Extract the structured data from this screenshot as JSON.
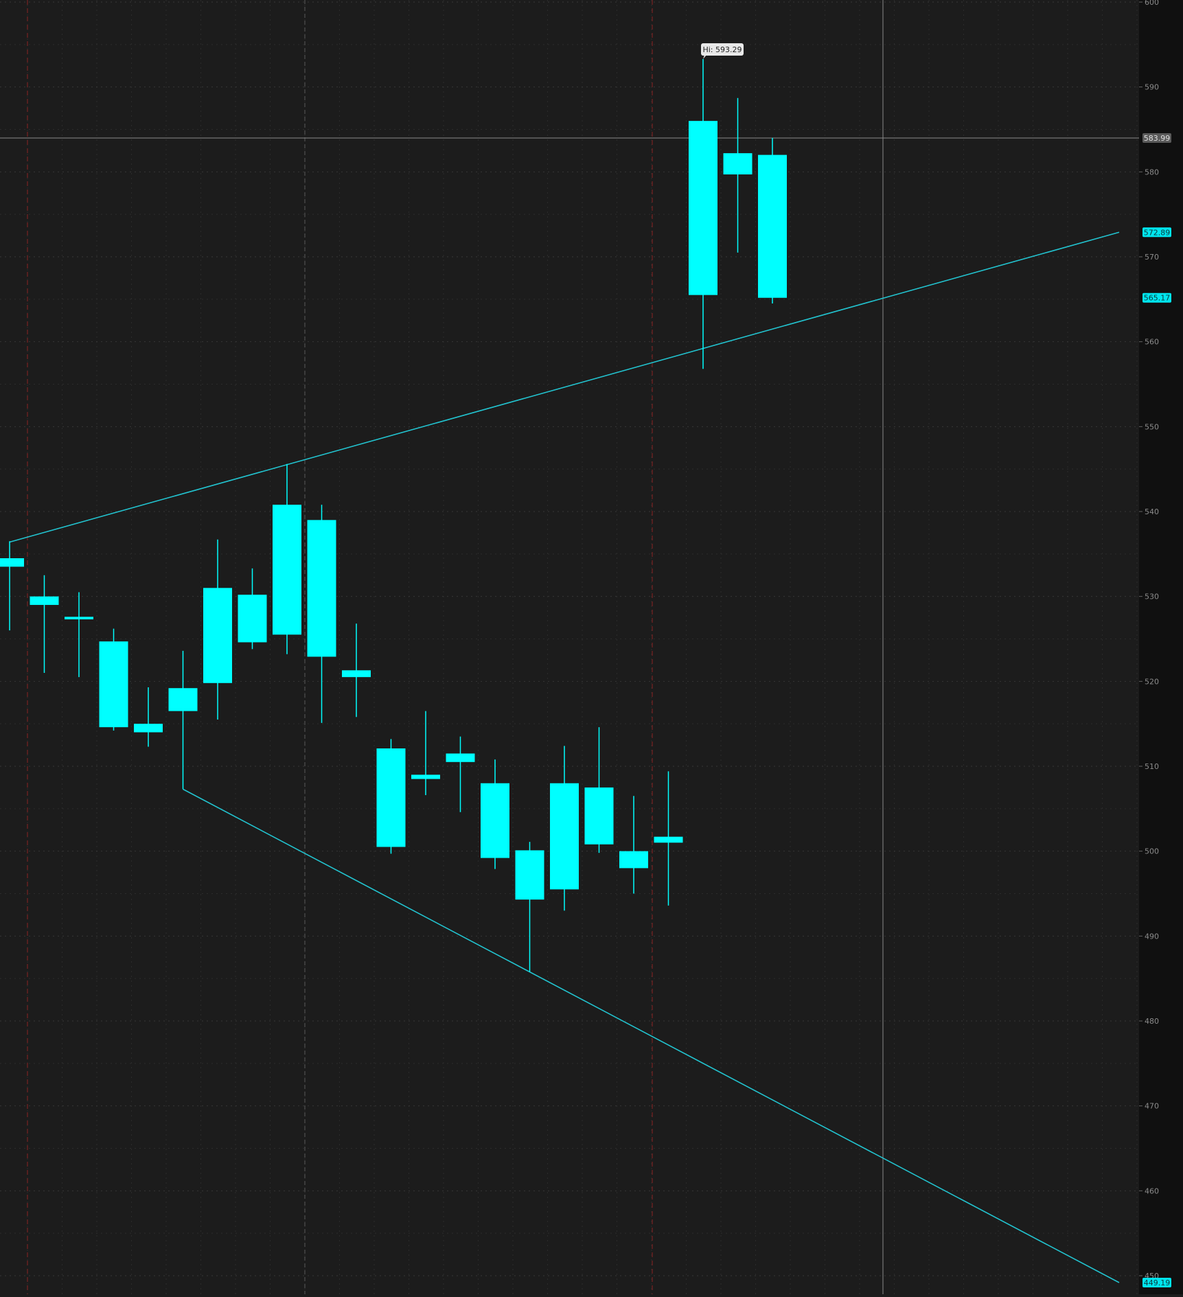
{
  "chart_data": {
    "type": "candlestick",
    "title": "",
    "xlabel": "",
    "ylabel": "",
    "ylim": [
      449.19,
      600
    ],
    "y_ticks": [
      450,
      460,
      470,
      480,
      490,
      500,
      510,
      520,
      530,
      540,
      550,
      560,
      570,
      580,
      590,
      600
    ],
    "grid": true,
    "candles": [
      {
        "open": 533.5,
        "high": 536.5,
        "low": 526.0,
        "close": 534.5
      },
      {
        "open": 529.0,
        "high": 532.5,
        "low": 521.0,
        "close": 530.0
      },
      {
        "open": 527.3,
        "high": 530.5,
        "low": 520.5,
        "close": 527.6
      },
      {
        "open": 524.7,
        "high": 526.2,
        "low": 514.2,
        "close": 514.6
      },
      {
        "open": 515.0,
        "high": 519.3,
        "low": 512.3,
        "close": 514.0
      },
      {
        "open": 516.5,
        "high": 523.6,
        "low": 507.3,
        "close": 519.2
      },
      {
        "open": 519.8,
        "high": 536.7,
        "low": 515.5,
        "close": 531.0
      },
      {
        "open": 524.6,
        "high": 533.3,
        "low": 523.8,
        "close": 530.2
      },
      {
        "open": 525.5,
        "high": 545.6,
        "low": 523.2,
        "close": 540.8
      },
      {
        "open": 539.0,
        "high": 540.8,
        "low": 515.1,
        "close": 522.9
      },
      {
        "open": 521.3,
        "high": 526.8,
        "low": 515.8,
        "close": 520.5
      },
      {
        "open": 512.1,
        "high": 513.2,
        "low": 499.7,
        "close": 500.5
      },
      {
        "open": 508.5,
        "high": 516.5,
        "low": 506.6,
        "close": 509.0
      },
      {
        "open": 510.5,
        "high": 513.5,
        "low": 504.6,
        "close": 511.5
      },
      {
        "open": 508.0,
        "high": 510.8,
        "low": 497.9,
        "close": 499.2
      },
      {
        "open": 500.1,
        "high": 501.1,
        "low": 485.8,
        "close": 494.3
      },
      {
        "open": 495.5,
        "high": 512.4,
        "low": 493.0,
        "close": 508.0
      },
      {
        "open": 507.5,
        "high": 514.6,
        "low": 499.8,
        "close": 500.8
      },
      {
        "open": 500.0,
        "high": 506.5,
        "low": 495.0,
        "close": 498.0
      },
      {
        "open": 501.0,
        "high": 509.4,
        "low": 493.6,
        "close": 501.7
      },
      {
        "open": 565.5,
        "high": 593.29,
        "low": 556.8,
        "close": 586.0
      },
      {
        "open": 582.2,
        "high": 588.7,
        "low": 570.5,
        "close": 579.7
      },
      {
        "open": 582.0,
        "high": 584.0,
        "low": 564.5,
        "close": 565.17
      }
    ],
    "trendlines": [
      {
        "name": "upper",
        "points": [
          [
            0,
            536.4
          ],
          [
            32,
            572.89
          ]
        ]
      },
      {
        "name": "lower",
        "points": [
          [
            5,
            507.3
          ],
          [
            32,
            449.19
          ]
        ]
      }
    ],
    "hi_label": "Hi: 593.29",
    "crosshair_price": "583.99",
    "price_labels": [
      {
        "text": "572.89",
        "value": 572.89,
        "style": "cyan"
      },
      {
        "text": "565.17",
        "value": 565.17,
        "style": "cyan"
      },
      {
        "text": "449.19",
        "value": 449.19,
        "style": "cyan"
      }
    ],
    "colors": {
      "background": "#1c1c1c",
      "axis_panel": "#101010",
      "candle": "#00ffff",
      "trendline": "#22c4d0",
      "grid": "#3a3a3a",
      "session_divider": "#7a2222",
      "crosshair": "#8a8a8a",
      "tick_text": "#8c8c8c"
    }
  }
}
